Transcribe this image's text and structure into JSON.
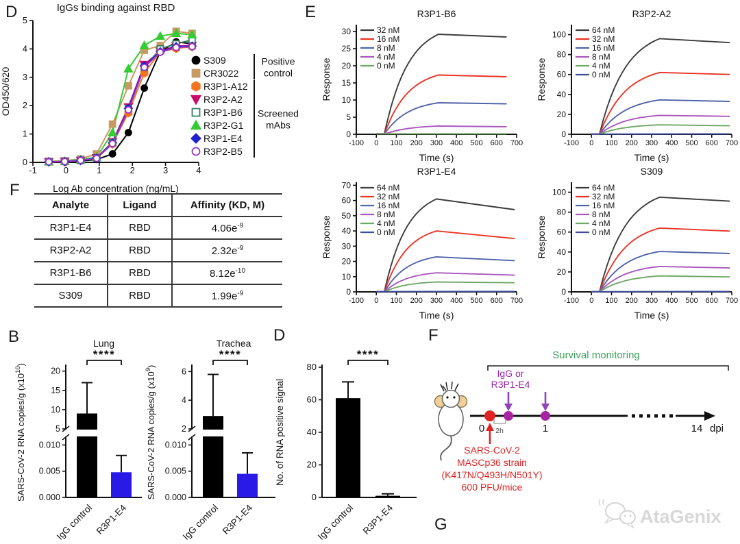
{
  "labels": {
    "panel_d_top": "D",
    "panel_e": "E",
    "panel_f_table": "F",
    "panel_b": "B",
    "panel_d_bottom": "D",
    "panel_f_schematic": "F",
    "panel_g": "G"
  },
  "watermark": {
    "text": "AtaGenix",
    "color": "#d7d7d7"
  },
  "kinetics_table": {
    "headers": [
      "Analyte",
      "Ligand",
      "Affinity (KD, M)"
    ],
    "rows": [
      {
        "analyte": "R3P1-E4",
        "ligand": "RBD",
        "affinity_mantissa": "4.06e",
        "affinity_exp": "-9"
      },
      {
        "analyte": "R3P2-A2",
        "ligand": "RBD",
        "affinity_mantissa": "2.32e",
        "affinity_exp": "-9"
      },
      {
        "analyte": "R3P1-B6",
        "ligand": "RBD",
        "affinity_mantissa": "8.12e",
        "affinity_exp": "-10"
      },
      {
        "analyte": "S309",
        "ligand": "RBD",
        "affinity_mantissa": "1.99e",
        "affinity_exp": "-9"
      }
    ]
  },
  "schematic": {
    "survival_label": "Survival monitoring",
    "survival_color": "#3aa35c",
    "treatment_line1": "IgG or",
    "treatment_line2": "R3P1-E4",
    "treatment_color": "#9b26a8",
    "arrow_color": "#8d44b8",
    "dot_color": "#aa23a2",
    "infection_color": "#e02423",
    "virus_lines": [
      "SARS-CoV-2",
      "MASCp36 strain",
      "(K417N/Q493H/N501Y)",
      "600 PFU/mice"
    ],
    "timeline_ticks": {
      "t0": "0",
      "t2h": "2h",
      "t1": "1",
      "t14": "14",
      "unit": "dpi"
    }
  },
  "chart_data": [
    {
      "id": "elisa",
      "type": "line",
      "title": "IgGs binding against RBD",
      "xlabel": "Log Ab concentration (ng/mL)",
      "ylabel": "OD450/620",
      "xlim": [
        -1,
        4
      ],
      "ylim": [
        0,
        5
      ],
      "xticks": [
        -1,
        0,
        1,
        2,
        3,
        4
      ],
      "yticks": [
        0,
        1,
        2,
        3,
        4,
        5
      ],
      "x": [
        -0.52,
        -0.04,
        0.44,
        0.92,
        1.4,
        1.88,
        2.36,
        2.84,
        3.32,
        3.8
      ],
      "series": [
        {
          "name": "S309",
          "color": "#000000",
          "marker": "circle",
          "open": false,
          "values": [
            0.02,
            0.02,
            0.05,
            0.1,
            0.3,
            1.05,
            2.62,
            3.9,
            4.25,
            4.18
          ]
        },
        {
          "name": "CR3022",
          "color": "#c69a63",
          "marker": "square",
          "open": false,
          "values": [
            0.04,
            0.06,
            0.12,
            0.3,
            1.35,
            2.7,
            3.95,
            4.12,
            4.62,
            4.55
          ]
        },
        {
          "name": "R3P1-A12",
          "color": "#f4731f",
          "marker": "hexagon",
          "open": false,
          "values": [
            0.02,
            0.03,
            0.07,
            0.16,
            0.65,
            1.75,
            3.15,
            3.9,
            4.02,
            4.08
          ]
        },
        {
          "name": "R3P2-A2",
          "color": "#cc0a6c",
          "marker": "triangle-down",
          "open": false,
          "values": [
            0.02,
            0.03,
            0.07,
            0.16,
            0.72,
            1.95,
            3.45,
            3.92,
            4.1,
            4.12
          ]
        },
        {
          "name": "R3P1-B6",
          "color": "#2e7d64",
          "marker": "square",
          "open": true,
          "values": [
            0.02,
            0.03,
            0.07,
            0.15,
            0.7,
            1.9,
            3.35,
            4.0,
            4.18,
            4.32
          ]
        },
        {
          "name": "R3P2-G1",
          "color": "#33cc33",
          "marker": "triangle-up",
          "open": false,
          "values": [
            0.02,
            0.04,
            0.09,
            0.18,
            1.05,
            3.3,
            4.12,
            4.45,
            4.55,
            4.5
          ]
        },
        {
          "name": "R3P1-E4",
          "color": "#2020cc",
          "marker": "diamond",
          "open": false,
          "values": [
            0.02,
            0.03,
            0.07,
            0.15,
            0.68,
            1.9,
            3.4,
            3.9,
            4.08,
            4.1
          ]
        },
        {
          "name": "R3P2-B5",
          "color": "#9933cc",
          "marker": "circle",
          "open": true,
          "values": [
            0.02,
            0.03,
            0.07,
            0.14,
            0.66,
            1.85,
            3.35,
            3.88,
            4.05,
            4.08
          ]
        }
      ],
      "legend_groups": [
        {
          "label": "Positive control",
          "from": 0,
          "to": 1
        },
        {
          "label": "Screened mAbs",
          "from": 2,
          "to": 7
        }
      ]
    },
    {
      "id": "spr-b6",
      "type": "sensorgram",
      "title": "R3P1-B6",
      "xlabel": "Time (s)",
      "ylabel": "Response",
      "xlim": [
        -100,
        700
      ],
      "ylim": [
        0,
        32
      ],
      "xticks": [
        -100,
        0,
        100,
        200,
        300,
        400,
        500,
        600,
        700
      ],
      "yticks": [
        0,
        5,
        10,
        15,
        20,
        25,
        30
      ],
      "assoc_start": 40,
      "assoc_end": 310,
      "t_end": 650,
      "series": [
        {
          "name": "32 nM",
          "color": "#3b3b3b",
          "peak": 29.2,
          "end": 28.4
        },
        {
          "name": "16 nM",
          "color": "#ec3323",
          "peak": 17.3,
          "end": 16.8
        },
        {
          "name": "8 nM",
          "color": "#4f63a8",
          "peak": 9.2,
          "end": 8.9
        },
        {
          "name": "4 nM",
          "color": "#a957bc",
          "peak": 2.4,
          "end": 2.2
        },
        {
          "name": "0 nM",
          "color": "#6ea865",
          "peak": 0.15,
          "end": 0.15
        }
      ]
    },
    {
      "id": "spr-a2",
      "type": "sensorgram",
      "title": "R3P2-A2",
      "xlabel": "Time (s)",
      "ylabel": "Response",
      "xlim": [
        -100,
        700
      ],
      "ylim": [
        0,
        110
      ],
      "xticks": [
        -100,
        0,
        100,
        200,
        300,
        400,
        500,
        600,
        700
      ],
      "yticks": [
        0,
        20,
        40,
        60,
        80,
        100
      ],
      "assoc_start": 40,
      "assoc_end": 340,
      "t_end": 690,
      "series": [
        {
          "name": "64 nM",
          "color": "#3b3b3b",
          "peak": 96,
          "end": 92
        },
        {
          "name": "32 nM",
          "color": "#ec3323",
          "peak": 62,
          "end": 60
        },
        {
          "name": "16 nM",
          "color": "#4f63a8",
          "peak": 34.5,
          "end": 33
        },
        {
          "name": "8 nM",
          "color": "#a957bc",
          "peak": 19,
          "end": 18
        },
        {
          "name": "4 nM",
          "color": "#6ea865",
          "peak": 9.5,
          "end": 8.5
        },
        {
          "name": "0 nM",
          "color": "#3f4c9c",
          "peak": 0.4,
          "end": 0.4
        }
      ]
    },
    {
      "id": "spr-e4",
      "type": "sensorgram",
      "title": "R3P1-E4",
      "xlabel": "Time (s)",
      "ylabel": "Response",
      "xlim": [
        -100,
        700
      ],
      "ylim": [
        0,
        72
      ],
      "xticks": [
        -100,
        0,
        100,
        200,
        300,
        400,
        500,
        600,
        700
      ],
      "yticks": [
        0,
        10,
        20,
        30,
        40,
        50,
        60,
        70
      ],
      "assoc_start": 40,
      "assoc_end": 300,
      "t_end": 690,
      "series": [
        {
          "name": "64 nM",
          "color": "#3b3b3b",
          "peak": 61,
          "end": 54
        },
        {
          "name": "32 nM",
          "color": "#ec3323",
          "peak": 40,
          "end": 35
        },
        {
          "name": "16 nM",
          "color": "#4f63a8",
          "peak": 23,
          "end": 20.5
        },
        {
          "name": "8 nM",
          "color": "#a957bc",
          "peak": 12.5,
          "end": 11
        },
        {
          "name": "4 nM",
          "color": "#6ea865",
          "peak": 6.5,
          "end": 6
        },
        {
          "name": "0 nM",
          "color": "#3f4c9c",
          "peak": 0.3,
          "end": 0.3
        }
      ]
    },
    {
      "id": "spr-s309",
      "type": "sensorgram",
      "title": "S309",
      "xlabel": "Time (s)",
      "ylabel": "Response",
      "xlim": [
        -100,
        700
      ],
      "ylim": [
        0,
        110
      ],
      "xticks": [
        -100,
        0,
        100,
        200,
        300,
        400,
        500,
        600,
        700
      ],
      "yticks": [
        0,
        20,
        40,
        60,
        80,
        100
      ],
      "assoc_start": 40,
      "assoc_end": 340,
      "t_end": 690,
      "series": [
        {
          "name": "64 nM",
          "color": "#3b3b3b",
          "peak": 95,
          "end": 91
        },
        {
          "name": "32 nM",
          "color": "#ec3323",
          "peak": 64,
          "end": 61
        },
        {
          "name": "16 nM",
          "color": "#4f63a8",
          "peak": 40.5,
          "end": 38.5
        },
        {
          "name": "8 nM",
          "color": "#a957bc",
          "peak": 25.5,
          "end": 24
        },
        {
          "name": "4 nM",
          "color": "#6ea865",
          "peak": 16,
          "end": 15
        },
        {
          "name": "0 nM",
          "color": "#3f4c9c",
          "peak": 0.4,
          "end": 0.4
        }
      ]
    },
    {
      "id": "lung",
      "type": "broken_bar",
      "title": "Lung",
      "ylabel_base": "SARS-CoV-2 RNA copies/g (x10",
      "ylabel_exp": "10",
      "ylabel_suffix": ")",
      "upper": {
        "lim": [
          5,
          21
        ],
        "ticks": [
          5,
          10,
          15,
          20
        ]
      },
      "lower": {
        "lim": [
          0,
          0.0115
        ],
        "ticks": [
          0,
          0.005,
          0.01
        ],
        "tick_labels": [
          "0.000",
          "0.005",
          "0.010"
        ]
      },
      "sig": "****",
      "ml": 74,
      "bars": [
        {
          "label": "IgG control",
          "color": "#000000",
          "value": 9,
          "err": 17,
          "segment": "upper"
        },
        {
          "label": "R3P1-E4",
          "color": "#2a1ae8",
          "value": 0.0048,
          "err": 0.008,
          "segment": "lower"
        }
      ]
    },
    {
      "id": "trachea",
      "type": "broken_bar",
      "title": "Trachea",
      "ylabel_base": "SARS-CoV-2 RNA copies/g (x10",
      "ylabel_exp": "9",
      "ylabel_suffix": ")",
      "upper": {
        "lim": [
          2,
          6.3
        ],
        "ticks": [
          2,
          4,
          6
        ]
      },
      "lower": {
        "lim": [
          0,
          0.0115
        ],
        "ticks": [
          0,
          0.005,
          0.01
        ],
        "tick_labels": [
          "0.000",
          "0.005",
          "0.010"
        ]
      },
      "sig": "****",
      "ml": 68,
      "bars": [
        {
          "label": "IgG control",
          "color": "#000000",
          "value": 2.9,
          "err": 5.8,
          "segment": "upper"
        },
        {
          "label": "R3P1-E4",
          "color": "#2a1ae8",
          "value": 0.0045,
          "err": 0.0085,
          "segment": "lower"
        }
      ]
    },
    {
      "id": "rna",
      "type": "bar",
      "title": "",
      "ylabel": "No. of RNA positive signal",
      "ylim": [
        0,
        80
      ],
      "yticks": [
        0,
        20,
        40,
        60,
        80
      ],
      "sig": "****",
      "bars": [
        {
          "label": "IgG control",
          "color": "#000000",
          "value": 61,
          "err": 71
        },
        {
          "label": "R3P1-E4",
          "color": "#000000",
          "value": 1,
          "err": 2.2
        }
      ]
    }
  ]
}
